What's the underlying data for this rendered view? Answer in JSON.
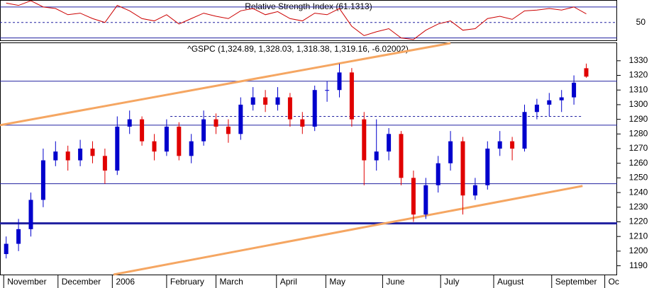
{
  "chart_data": [
    {
      "type": "line",
      "title": "Relative Strength Index (61.1313)",
      "color": "#cc0000",
      "categories": [
        null,
        null,
        null,
        null,
        null,
        null,
        null,
        null,
        null,
        null,
        null,
        null,
        null,
        null,
        null,
        null,
        null,
        null,
        null,
        null,
        null,
        null,
        null,
        null,
        null,
        null,
        null,
        null,
        null,
        null,
        null,
        null,
        null,
        null,
        null,
        null,
        null,
        null,
        null,
        null,
        null,
        null,
        null,
        null,
        null,
        null,
        null,
        null
      ],
      "values": [
        75,
        72,
        78,
        70,
        68,
        60,
        62,
        55,
        50,
        72,
        65,
        55,
        52,
        60,
        48,
        55,
        62,
        58,
        55,
        65,
        68,
        60,
        64,
        55,
        52,
        62,
        60,
        68,
        45,
        33,
        38,
        42,
        30,
        28,
        40,
        48,
        52,
        40,
        42,
        55,
        58,
        54,
        65,
        66,
        68,
        66,
        70,
        61.1313
      ],
      "xlim": [
        -0.5,
        49.5
      ],
      "ylim": [
        26,
        79
      ],
      "yticks": [
        50
      ],
      "levels": [
        70,
        30
      ],
      "level_color": "#2020a0"
    },
    {
      "type": "candlestick",
      "title": "^GSPC (1,324.89, 1,328.03, 1,318.38, 1,319.16, -6.02002)",
      "categories": [
        null,
        null,
        null,
        null,
        null,
        null,
        null,
        null,
        null,
        null,
        null,
        null,
        null,
        null,
        null,
        null,
        null,
        null,
        null,
        null,
        null,
        null,
        null,
        null,
        null,
        null,
        null,
        null,
        null,
        null,
        null,
        null,
        null,
        null,
        null,
        null,
        null,
        null,
        null,
        null,
        null,
        null,
        null,
        null,
        null,
        null,
        null,
        null
      ],
      "open": [
        1198,
        1205,
        1215,
        1235,
        1262,
        1268,
        1262,
        1270,
        1265,
        1255,
        1285,
        1290,
        1275,
        1268,
        1285,
        1265,
        1275,
        1290,
        1285,
        1280,
        1300,
        1305,
        1300,
        1305,
        1290,
        1285,
        1310,
        1310,
        1322,
        1290,
        1262,
        1268,
        1280,
        1250,
        1225,
        1245,
        1260,
        1275,
        1238,
        1245,
        1270,
        1275,
        1270,
        1295,
        1300,
        1303,
        1305,
        1324.89
      ],
      "high": [
        1210,
        1222,
        1240,
        1270,
        1275,
        1272,
        1276,
        1275,
        1270,
        1292,
        1296,
        1292,
        1280,
        1290,
        1288,
        1280,
        1296,
        1294,
        1290,
        1305,
        1312,
        1310,
        1312,
        1308,
        1295,
        1313,
        1316,
        1328,
        1325,
        1295,
        1290,
        1284,
        1282,
        1255,
        1250,
        1265,
        1282,
        1278,
        1250,
        1275,
        1282,
        1278,
        1300,
        1304,
        1308,
        1310,
        1320,
        1328.03
      ],
      "low": [
        1195,
        1200,
        1210,
        1230,
        1258,
        1255,
        1258,
        1260,
        1246,
        1252,
        1280,
        1272,
        1262,
        1265,
        1262,
        1260,
        1272,
        1280,
        1274,
        1276,
        1296,
        1295,
        1296,
        1285,
        1280,
        1282,
        1302,
        1305,
        1285,
        1245,
        1255,
        1262,
        1245,
        1220,
        1222,
        1240,
        1255,
        1225,
        1235,
        1242,
        1265,
        1262,
        1268,
        1290,
        1292,
        1295,
        1300,
        1318.38
      ],
      "close": [
        1205,
        1215,
        1235,
        1262,
        1268,
        1262,
        1270,
        1265,
        1255,
        1285,
        1290,
        1275,
        1268,
        1285,
        1265,
        1275,
        1290,
        1285,
        1280,
        1300,
        1305,
        1300,
        1305,
        1290,
        1285,
        1310,
        1310,
        1322,
        1290,
        1262,
        1268,
        1280,
        1250,
        1225,
        1245,
        1260,
        1275,
        1238,
        1245,
        1270,
        1275,
        1270,
        1295,
        1300,
        1303,
        1305,
        1315,
        1319.16
      ],
      "up_color": "#0000cc",
      "down_color": "#e00000",
      "xlim": [
        -0.5,
        49.5
      ],
      "ylim": [
        1184,
        1342
      ],
      "yticks": [
        1190,
        1200,
        1210,
        1220,
        1230,
        1240,
        1250,
        1260,
        1270,
        1280,
        1290,
        1300,
        1310,
        1320,
        1330
      ],
      "xticks": [
        {
          "value": -0.2,
          "label": "November"
        },
        {
          "value": 4.2,
          "label": "December"
        },
        {
          "value": 8.6,
          "label": "2006"
        },
        {
          "value": 13,
          "label": "February"
        },
        {
          "value": 17,
          "label": "March"
        },
        {
          "value": 21.9,
          "label": "April"
        },
        {
          "value": 25.9,
          "label": "May"
        },
        {
          "value": 30.5,
          "label": "June"
        },
        {
          "value": 35.2,
          "label": "July"
        },
        {
          "value": 39.5,
          "label": "August"
        },
        {
          "value": 44.2,
          "label": "September"
        },
        {
          "value": 48.5,
          "label": "Oc"
        }
      ],
      "hlines": [
        1316,
        1286,
        1246
      ],
      "support": 1219,
      "line_color": "#2020a0",
      "dashed_line": {
        "y": 1292,
        "x": [
          13.3,
          46.6
        ]
      },
      "trendlines": [
        {
          "x": [
            -0.5,
            36
          ],
          "y": [
            1286,
            1342
          ]
        },
        {
          "x": [
            8.7,
            46.7
          ],
          "y": [
            1184,
            1244.5
          ]
        }
      ],
      "trend_color": "#f5a662"
    }
  ]
}
